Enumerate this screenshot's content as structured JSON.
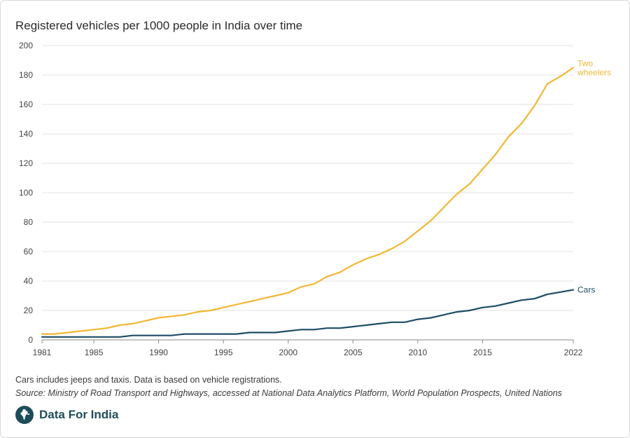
{
  "title": "Registered vehicles per 1000 people in India over time",
  "note": "Cars includes jeeps and taxis. Data is based on vehicle registrations.",
  "source": "Source: Ministry of Road Transport and Highways, accessed at National Data Analytics Platform, World Population Prospects, United Nations",
  "brand": {
    "name": "Data For India",
    "icon": "india-map-logo-icon"
  },
  "chart_data": {
    "type": "line",
    "title": "Registered vehicles per 1000 people in India over time",
    "xlabel": "",
    "ylabel": "",
    "x": [
      1981,
      1982,
      1983,
      1984,
      1985,
      1986,
      1987,
      1988,
      1989,
      1990,
      1991,
      1992,
      1993,
      1994,
      1995,
      1996,
      1997,
      1998,
      1999,
      2000,
      2001,
      2002,
      2003,
      2004,
      2005,
      2006,
      2007,
      2008,
      2009,
      2010,
      2011,
      2012,
      2013,
      2014,
      2015,
      2016,
      2017,
      2018,
      2019,
      2020,
      2021,
      2022
    ],
    "xlim": [
      1981,
      2022
    ],
    "ylim": [
      0,
      200
    ],
    "x_ticks": [
      "1981",
      "1985",
      "1990",
      "1995",
      "2000",
      "2005",
      "2010",
      "2015",
      "2022"
    ],
    "y_ticks": [
      "0",
      "20",
      "40",
      "60",
      "80",
      "100",
      "120",
      "140",
      "160",
      "180",
      "200"
    ],
    "grid": true,
    "legend": "inline-right",
    "series": [
      {
        "name": "Two wheelers",
        "label_lines": [
          "Two",
          "wheelers"
        ],
        "color": "#f2b733",
        "values": [
          4,
          4,
          5,
          6,
          7,
          8,
          10,
          11,
          13,
          15,
          16,
          17,
          19,
          20,
          22,
          24,
          26,
          28,
          30,
          32,
          36,
          38,
          43,
          46,
          51,
          55,
          58,
          62,
          67,
          74,
          81,
          90,
          99,
          106,
          116,
          126,
          138,
          147,
          159,
          174,
          179,
          185
        ]
      },
      {
        "name": "Cars",
        "label_lines": [
          "Cars"
        ],
        "color": "#1e4d66",
        "values": [
          2,
          2,
          2,
          2,
          2,
          2,
          2,
          3,
          3,
          3,
          3,
          4,
          4,
          4,
          4,
          4,
          5,
          5,
          5,
          6,
          7,
          7,
          8,
          8,
          9,
          10,
          11,
          12,
          12,
          14,
          15,
          17,
          19,
          20,
          22,
          23,
          25,
          27,
          28,
          31,
          32.5,
          34
        ]
      }
    ]
  }
}
